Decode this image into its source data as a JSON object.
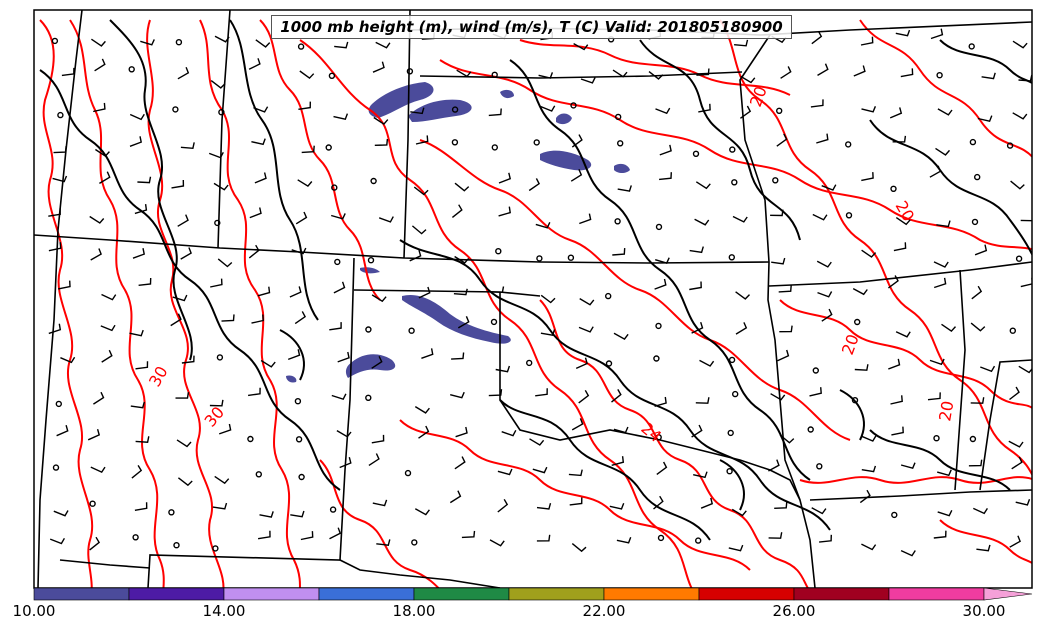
{
  "title": "1000 mb height (m), wind (m/s), T (C) Valid: 201805180900",
  "colorbar": {
    "ticks": [
      "10.00",
      "14.00",
      "18.00",
      "22.00",
      "26.00",
      "30.00"
    ],
    "min": 10,
    "max": 31,
    "step": 2,
    "colors": [
      "#4b4b9b",
      "#4d1ba5",
      "#c08ff0",
      "#3a6fd8",
      "#1f8a45",
      "#a0a01c",
      "#ff7a00",
      "#d60000",
      "#a00020",
      "#f03ca0"
    ],
    "extend_color": "#f5a0d8"
  },
  "contour_labels": [
    "30",
    "30",
    "24",
    "20",
    "20",
    "20",
    "20"
  ],
  "colors": {
    "temperature": "#ff0000",
    "height": "#000000",
    "boundaries": "#000000",
    "fill": "#4b4b9b"
  }
}
